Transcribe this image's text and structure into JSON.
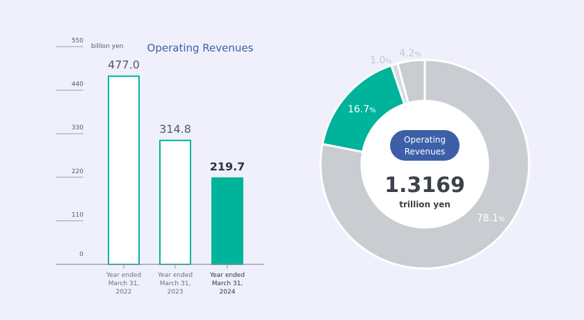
{
  "chart_data": [
    {
      "type": "bar",
      "title": "Operating Revenues",
      "unit": "billion yen",
      "ylim": [
        0,
        550
      ],
      "yticks": [
        "0",
        "110",
        "220",
        "330",
        "440",
        "550"
      ],
      "categories": [
        [
          "Year ended",
          "March 31,",
          "2022"
        ],
        [
          "Year ended",
          "March 31,",
          "2023"
        ],
        [
          "Year ended",
          "March 31,",
          "2024"
        ]
      ],
      "values": [
        477.0,
        314.8,
        219.7
      ],
      "value_labels": [
        "477.0",
        "314.8",
        "219.7"
      ],
      "highlight_index": 2,
      "colors": {
        "accent": "#00b39b",
        "hollow": "#ffffff",
        "axis": "#9aa0b0",
        "text": "#555a66"
      }
    },
    {
      "type": "pie",
      "style": "donut",
      "center_badge": [
        "Operating",
        "Revenues"
      ],
      "center_value": "1.3169",
      "center_unit": "trillion yen",
      "slices": [
        {
          "value": 78.1,
          "label": "78.1",
          "color": "#c9cdd2"
        },
        {
          "value": 16.7,
          "label": "16.7",
          "color": "#00b39b"
        },
        {
          "value": 1.0,
          "label": "1.0",
          "color": "#d7dadf"
        },
        {
          "value": 4.2,
          "label": "4.2",
          "color": "#c9cdd2"
        }
      ],
      "percent_symbol": "%",
      "badge_color": "#3c5fa8"
    }
  ]
}
